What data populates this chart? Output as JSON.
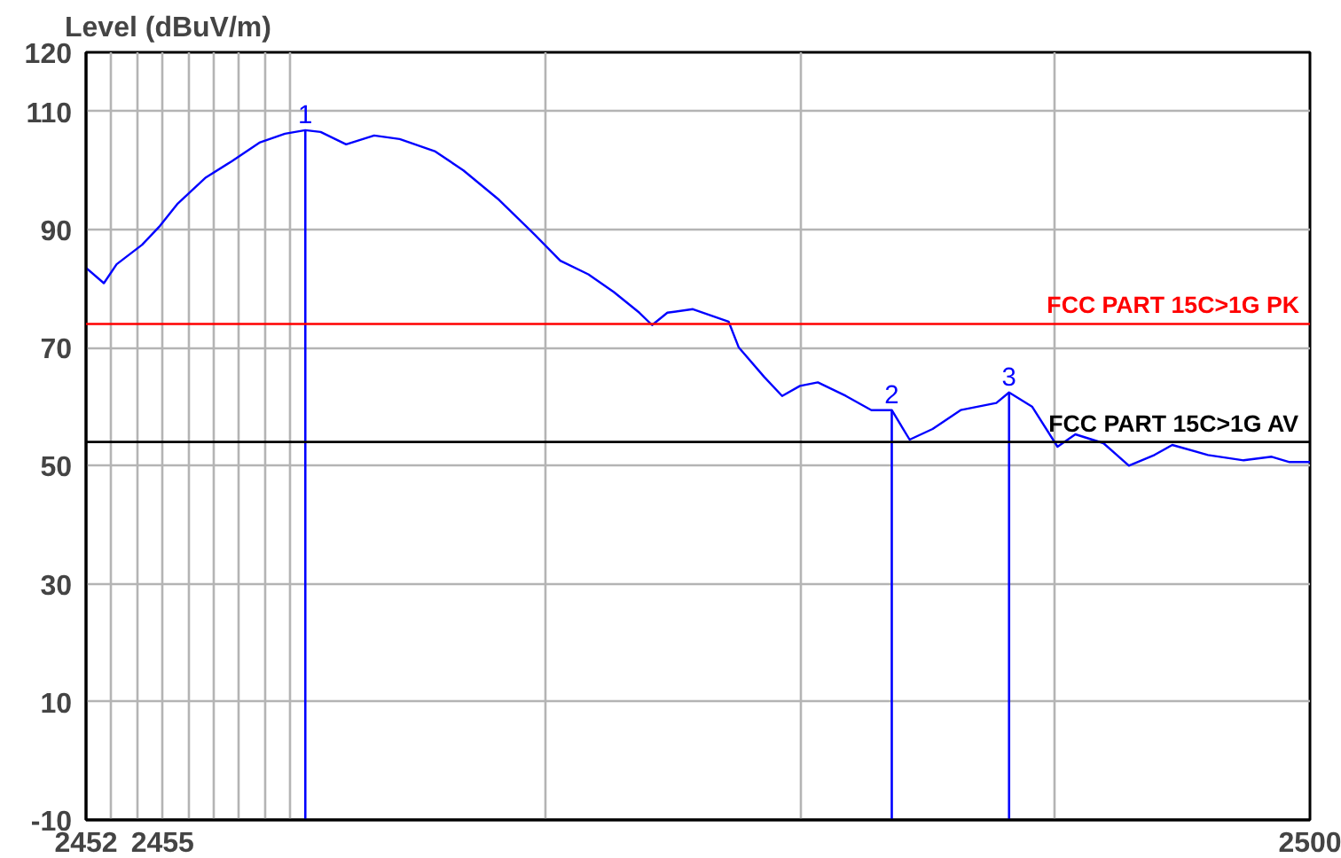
{
  "chart_data": {
    "type": "line",
    "ylabel": "Level (dBuV/m)",
    "x": [
      2452.0,
      2452.7,
      2453.2,
      2454.2,
      2454.9,
      2455.6,
      2456.7,
      2457.7,
      2458.8,
      2459.8,
      2460.6,
      2461.2,
      2462.2,
      2463.3,
      2464.3,
      2465.7,
      2466.8,
      2468.2,
      2469.6,
      2470.6,
      2471.7,
      2472.7,
      2473.7,
      2474.2,
      2474.8,
      2475.8,
      2477.2,
      2477.6,
      2478.6,
      2479.3,
      2480.0,
      2480.7,
      2481.8,
      2482.8,
      2483.6,
      2484.3,
      2485.2,
      2486.3,
      2487.7,
      2488.2,
      2489.1,
      2490.1,
      2490.8,
      2491.9,
      2492.9,
      2493.9,
      2494.6,
      2496.0,
      2497.4,
      2498.5,
      2499.2,
      2500.0
    ],
    "series": [
      {
        "color": "#0000ff",
        "values": [
          83.5,
          80.9,
          84.1,
          87.4,
          90.6,
          94.4,
          98.8,
          101.5,
          104.7,
          106.2,
          106.8,
          106.5,
          104.4,
          105.9,
          105.3,
          103.2,
          100.0,
          95.0,
          89.1,
          84.7,
          82.4,
          79.4,
          75.9,
          73.8,
          75.9,
          76.5,
          74.4,
          70.0,
          65.0,
          61.8,
          63.5,
          64.1,
          61.8,
          59.4,
          59.4,
          54.4,
          56.2,
          59.4,
          60.6,
          62.4,
          60.0,
          53.2,
          55.3,
          53.8,
          50.0,
          51.8,
          53.5,
          51.8,
          50.9,
          51.5,
          50.6,
          50.6
        ]
      }
    ],
    "xlim": [
      2452,
      2500
    ],
    "xticks": [
      2452,
      {
        "value": 2453,
        "label": null
      },
      {
        "value": 2454,
        "label": null
      },
      2455,
      {
        "value": 2456,
        "label": null
      },
      {
        "value": 2457,
        "label": null
      },
      {
        "value": 2458,
        "label": null
      },
      {
        "value": 2459,
        "label": null
      },
      {
        "value": 2460,
        "label": null
      },
      {
        "value": 2470,
        "label": null
      },
      {
        "value": 2480,
        "label": null
      },
      {
        "value": 2490,
        "label": null
      },
      2500
    ],
    "ylim": [
      -10,
      120
    ],
    "yticks": [
      -10,
      10,
      30,
      50,
      70,
      90,
      110,
      120
    ],
    "grid": true,
    "ref_lines": [
      {
        "axis": "y",
        "value": 74,
        "label": "FCC PART 15C>1G PK",
        "color": "#ff0000"
      },
      {
        "axis": "y",
        "value": 54,
        "label": "FCC PART 15C>1G AV",
        "color": "#000000"
      },
      {
        "axis": "x",
        "value": 2460.6,
        "color": "#0000ff"
      },
      {
        "axis": "x",
        "value": 2483.6,
        "color": "#0000ff"
      },
      {
        "axis": "x",
        "value": 2488.2,
        "color": "#0000ff"
      }
    ],
    "annotations": [
      {
        "text": "1",
        "x": 2460.6,
        "y": 106.8
      },
      {
        "text": "2",
        "x": 2483.6,
        "y": 59.4
      },
      {
        "text": "3",
        "x": 2488.2,
        "y": 62.4
      }
    ]
  }
}
